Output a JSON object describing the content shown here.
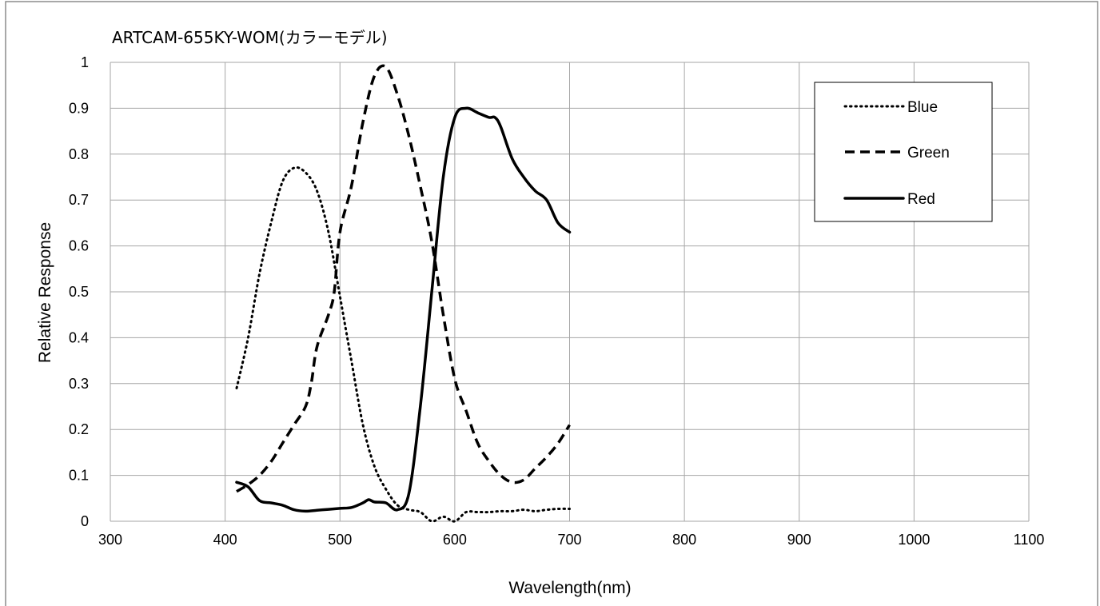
{
  "chart_data": {
    "type": "line",
    "title": "ARTCAM-655KY-WOM(カラーモデル)",
    "xlabel": "Wavelength(nm)",
    "ylabel": "Relative Response",
    "xlim": [
      300,
      1100
    ],
    "ylim": [
      0,
      1
    ],
    "xticks": [
      300,
      400,
      500,
      600,
      700,
      800,
      900,
      1000,
      1100
    ],
    "yticks": [
      0,
      0.1,
      0.2,
      0.3,
      0.4,
      0.5,
      0.6,
      0.7,
      0.8,
      0.9,
      1
    ],
    "xtick_labels": [
      "300",
      "400",
      "500",
      "600",
      "700",
      "800",
      "900",
      "1000",
      "1100"
    ],
    "ytick_labels": [
      "0",
      "0.1",
      "0.2",
      "0.3",
      "0.4",
      "0.5",
      "0.6",
      "0.7",
      "0.8",
      "0.9",
      "1"
    ],
    "grid": true,
    "legend": "top-right",
    "series": [
      {
        "name": "Blue",
        "style": "dotted",
        "color": "#000000",
        "points": [
          [
            410,
            0.29
          ],
          [
            420,
            0.4
          ],
          [
            430,
            0.54
          ],
          [
            440,
            0.65
          ],
          [
            450,
            0.74
          ],
          [
            460,
            0.77
          ],
          [
            470,
            0.76
          ],
          [
            480,
            0.72
          ],
          [
            490,
            0.63
          ],
          [
            500,
            0.49
          ],
          [
            510,
            0.35
          ],
          [
            520,
            0.21
          ],
          [
            530,
            0.12
          ],
          [
            540,
            0.07
          ],
          [
            550,
            0.035
          ],
          [
            560,
            0.025
          ],
          [
            570,
            0.02
          ],
          [
            580,
            0.0
          ],
          [
            590,
            0.01
          ],
          [
            600,
            0.0
          ],
          [
            610,
            0.02
          ],
          [
            620,
            0.02
          ],
          [
            630,
            0.02
          ],
          [
            640,
            0.022
          ],
          [
            650,
            0.022
          ],
          [
            660,
            0.025
          ],
          [
            670,
            0.022
          ],
          [
            680,
            0.025
          ],
          [
            690,
            0.027
          ],
          [
            700,
            0.027
          ]
        ]
      },
      {
        "name": "Green",
        "style": "dashed",
        "color": "#000000",
        "points": [
          [
            410,
            0.065
          ],
          [
            420,
            0.08
          ],
          [
            430,
            0.1
          ],
          [
            440,
            0.13
          ],
          [
            450,
            0.17
          ],
          [
            460,
            0.21
          ],
          [
            470,
            0.25
          ],
          [
            475,
            0.3
          ],
          [
            480,
            0.38
          ],
          [
            490,
            0.45
          ],
          [
            495,
            0.5
          ],
          [
            500,
            0.63
          ],
          [
            510,
            0.73
          ],
          [
            520,
            0.87
          ],
          [
            530,
            0.97
          ],
          [
            540,
            0.99
          ],
          [
            550,
            0.93
          ],
          [
            560,
            0.84
          ],
          [
            570,
            0.73
          ],
          [
            580,
            0.61
          ],
          [
            590,
            0.45
          ],
          [
            600,
            0.31
          ],
          [
            610,
            0.24
          ],
          [
            620,
            0.17
          ],
          [
            630,
            0.13
          ],
          [
            640,
            0.1
          ],
          [
            650,
            0.085
          ],
          [
            660,
            0.09
          ],
          [
            670,
            0.115
          ],
          [
            680,
            0.14
          ],
          [
            690,
            0.17
          ],
          [
            700,
            0.21
          ]
        ]
      },
      {
        "name": "Red",
        "style": "solid",
        "color": "#000000",
        "points": [
          [
            410,
            0.085
          ],
          [
            420,
            0.075
          ],
          [
            430,
            0.045
          ],
          [
            440,
            0.04
          ],
          [
            450,
            0.035
          ],
          [
            460,
            0.025
          ],
          [
            470,
            0.022
          ],
          [
            480,
            0.024
          ],
          [
            490,
            0.026
          ],
          [
            500,
            0.028
          ],
          [
            510,
            0.03
          ],
          [
            520,
            0.04
          ],
          [
            525,
            0.047
          ],
          [
            530,
            0.042
          ],
          [
            540,
            0.04
          ],
          [
            550,
            0.025
          ],
          [
            560,
            0.06
          ],
          [
            570,
            0.25
          ],
          [
            580,
            0.5
          ],
          [
            590,
            0.75
          ],
          [
            600,
            0.88
          ],
          [
            610,
            0.9
          ],
          [
            620,
            0.89
          ],
          [
            630,
            0.88
          ],
          [
            635,
            0.88
          ],
          [
            640,
            0.86
          ],
          [
            650,
            0.79
          ],
          [
            660,
            0.75
          ],
          [
            670,
            0.72
          ],
          [
            680,
            0.7
          ],
          [
            690,
            0.65
          ],
          [
            700,
            0.63
          ]
        ]
      }
    ]
  }
}
